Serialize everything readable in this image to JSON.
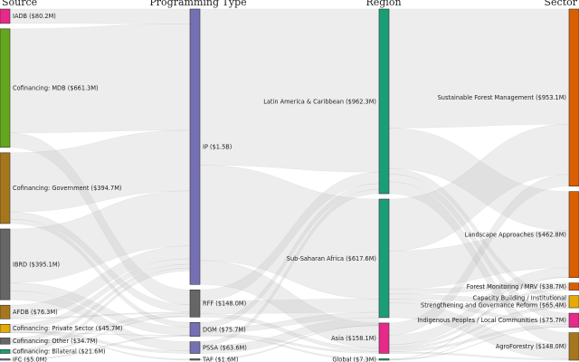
{
  "titles": {
    "source": "Source",
    "program": "Programming Type",
    "region": "Region",
    "sector": "Sector"
  },
  "nodes": {
    "source": [
      {
        "label": "IADB ($80.2M)",
        "value": 80.2,
        "color": "#e7298a"
      },
      {
        "label": "Cofinancing: MDB ($661.3M)",
        "value": 661.3,
        "color": "#66a61e"
      },
      {
        "label": "Cofinancing: Government ($394.7M)",
        "value": 394.7,
        "color": "#a6761d"
      },
      {
        "label": "IBRD ($395.1M)",
        "value": 395.1,
        "color": "#666666"
      },
      {
        "label": "AFDB ($76.3M)",
        "value": 76.3,
        "color": "#a6761d"
      },
      {
        "label": "Cofinancing: Private Sector ($45.7M)",
        "value": 45.7,
        "color": "#e6ab02"
      },
      {
        "label": "Cofinancing: Other ($34.7M)",
        "value": 34.7,
        "color": "#666666"
      },
      {
        "label": "Cofinancing: Bilateral ($21.6M)",
        "value": 21.6,
        "color": "#1b9e77"
      },
      {
        "label": "IFC ($5.0M)",
        "value": 5.0,
        "color": "#7570b3"
      }
    ],
    "program": [
      {
        "label": "IP ($1.5B)",
        "value": 1500,
        "color": "#7570b3"
      },
      {
        "label": "RFF ($148.0M)",
        "value": 148.0,
        "color": "#666666"
      },
      {
        "label": "DGM ($75.7M)",
        "value": 75.7,
        "color": "#7570b3"
      },
      {
        "label": "PSSA ($63.6M)",
        "value": 63.6,
        "color": "#7570b3"
      },
      {
        "label": "TAF ($1.6M)",
        "value": 1.6,
        "color": "#666666"
      }
    ],
    "region": [
      {
        "label": "Latin America & Caribbean ($962.3M)",
        "value": 962.3,
        "color": "#1b9e77"
      },
      {
        "label": "Sub-Saharan Africa ($617.6M)",
        "value": 617.6,
        "color": "#1b9e77"
      },
      {
        "label": "Asia ($158.1M)",
        "value": 158.1,
        "color": "#e7298a"
      },
      {
        "label": "Global ($7.3M)",
        "value": 7.3,
        "color": "#1b9e77"
      }
    ],
    "sector": [
      {
        "label": "Sustainable Forest Management ($953.1M)",
        "value": 953.1,
        "color": "#d95f02"
      },
      {
        "label": "Landscape Approaches ($462.8M)",
        "value": 462.8,
        "color": "#d95f02"
      },
      {
        "label": "Forest Monitoring / MRV ($38.7M)",
        "value": 38.7,
        "color": "#d95f02"
      },
      {
        "label": "Capacity Building / Institutional Strengthening and Governance Reform ($65.4M)",
        "value": 65.4,
        "color": "#e6ab02"
      },
      {
        "label": "Indigenous Peoples / Local Communities ($75.7M)",
        "value": 75.7,
        "color": "#e7298a"
      },
      {
        "label": "AgroForestry ($148.0M)",
        "value": 148.0,
        "color": "#a6761d"
      }
    ]
  },
  "links": [
    {
      "from": "source.0",
      "to": "program.0",
      "value": 80.2
    },
    {
      "from": "source.1",
      "to": "program.0",
      "value": 580
    },
    {
      "from": "source.1",
      "to": "program.1",
      "value": 81.3
    },
    {
      "from": "source.2",
      "to": "program.0",
      "value": 330
    },
    {
      "from": "source.2",
      "to": "program.1",
      "value": 40
    },
    {
      "from": "source.2",
      "to": "program.2",
      "value": 24.7
    },
    {
      "from": "source.3",
      "to": "program.0",
      "value": 300
    },
    {
      "from": "source.3",
      "to": "program.2",
      "value": 45
    },
    {
      "from": "source.3",
      "to": "program.3",
      "value": 50.1
    },
    {
      "from": "source.4",
      "to": "program.0",
      "value": 70
    },
    {
      "from": "source.4",
      "to": "program.1",
      "value": 6.3
    },
    {
      "from": "source.5",
      "to": "program.0",
      "value": 30
    },
    {
      "from": "source.5",
      "to": "program.3",
      "value": 13.5
    },
    {
      "from": "source.5",
      "to": "program.4",
      "value": 1.6
    },
    {
      "from": "source.5",
      "to": "program.2",
      "value": 0.6
    },
    {
      "from": "source.6",
      "to": "program.0",
      "value": 20
    },
    {
      "from": "source.6",
      "to": "program.1",
      "value": 14.7
    },
    {
      "from": "source.7",
      "to": "program.0",
      "value": 16.2
    },
    {
      "from": "source.7",
      "to": "program.1",
      "value": 5.4
    },
    {
      "from": "source.8",
      "to": "program.2",
      "value": 5.0
    },
    {
      "from": "program.0",
      "to": "region.0",
      "value": 850
    },
    {
      "from": "program.0",
      "to": "region.1",
      "value": 520
    },
    {
      "from": "program.0",
      "to": "region.2",
      "value": 130
    },
    {
      "from": "program.1",
      "to": "region.0",
      "value": 60
    },
    {
      "from": "program.1",
      "to": "region.1",
      "value": 70
    },
    {
      "from": "program.1",
      "to": "region.2",
      "value": 18
    },
    {
      "from": "program.2",
      "to": "region.0",
      "value": 30
    },
    {
      "from": "program.2",
      "to": "region.1",
      "value": 27.6
    },
    {
      "from": "program.2",
      "to": "region.2",
      "value": 10.1
    },
    {
      "from": "program.2",
      "to": "region.3",
      "value": 7.3
    },
    {
      "from": "program.3",
      "to": "region.0",
      "value": 22.3
    },
    {
      "from": "program.3",
      "to": "region.1",
      "value": 41.3
    },
    {
      "from": "program.4",
      "to": "region.1",
      "value": 1.6
    },
    {
      "from": "region.0",
      "to": "sector.0",
      "value": 620
    },
    {
      "from": "region.0",
      "to": "sector.1",
      "value": 210
    },
    {
      "from": "region.0",
      "to": "sector.3",
      "value": 30
    },
    {
      "from": "region.0",
      "to": "sector.4",
      "value": 40
    },
    {
      "from": "region.0",
      "to": "sector.5",
      "value": 62.3
    },
    {
      "from": "region.1",
      "to": "sector.0",
      "value": 270
    },
    {
      "from": "region.1",
      "to": "sector.1",
      "value": 200
    },
    {
      "from": "region.1",
      "to": "sector.2",
      "value": 25
    },
    {
      "from": "region.1",
      "to": "sector.3",
      "value": 25
    },
    {
      "from": "region.1",
      "to": "sector.4",
      "value": 20
    },
    {
      "from": "region.1",
      "to": "sector.5",
      "value": 77.6
    },
    {
      "from": "region.2",
      "to": "sector.0",
      "value": 63.1
    },
    {
      "from": "region.2",
      "to": "sector.1",
      "value": 50
    },
    {
      "from": "region.2",
      "to": "sector.2",
      "value": 13.7
    },
    {
      "from": "region.2",
      "to": "sector.3",
      "value": 10.4
    },
    {
      "from": "region.2",
      "to": "sector.4",
      "value": 12.8
    },
    {
      "from": "region.2",
      "to": "sector.5",
      "value": 8.1
    },
    {
      "from": "region.3",
      "to": "sector.1",
      "value": 2.8
    },
    {
      "from": "region.3",
      "to": "sector.4",
      "value": 2.9
    },
    {
      "from": "region.3",
      "to": "sector.3",
      "value": 1.6
    }
  ]
}
